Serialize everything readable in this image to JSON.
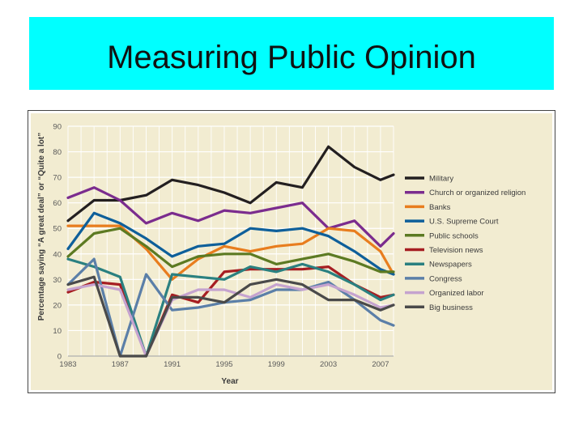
{
  "slide": {
    "title": "Measuring Public Opinion"
  },
  "colors": {
    "title_bg": "#00ffff",
    "panel_bg": "#f2ecd1",
    "grid": "#ffffff",
    "axis_text": "#5a5a5a"
  },
  "chart_data": {
    "type": "line",
    "title": "",
    "xlabel": "Year",
    "ylabel": "Percentage saying “A great deal” or “Quite a lot”",
    "xlim": [
      1983,
      2008
    ],
    "ylim": [
      0,
      90
    ],
    "x_ticks": [
      "1983",
      "1987",
      "1991",
      "1995",
      "1999",
      "2003",
      "2007"
    ],
    "y_ticks": [
      "0",
      "10",
      "20",
      "30",
      "40",
      "50",
      "60",
      "70",
      "80",
      "90"
    ],
    "grid": true,
    "legend_position": "right",
    "series": [
      {
        "name": "Military",
        "color": "#231f20",
        "points": [
          [
            1983,
            53
          ],
          [
            1985,
            61
          ],
          [
            1987,
            61
          ],
          [
            1989,
            63
          ],
          [
            1991,
            69
          ],
          [
            1993,
            67
          ],
          [
            1995,
            64
          ],
          [
            1997,
            60
          ],
          [
            1999,
            68
          ],
          [
            2001,
            66
          ],
          [
            2003,
            82
          ],
          [
            2005,
            74
          ],
          [
            2007,
            69
          ],
          [
            2008,
            71
          ]
        ]
      },
      {
        "name": "Church or organized religion",
        "color": "#7b2c8e",
        "points": [
          [
            1983,
            62
          ],
          [
            1985,
            66
          ],
          [
            1987,
            61
          ],
          [
            1989,
            52
          ],
          [
            1991,
            56
          ],
          [
            1993,
            53
          ],
          [
            1995,
            57
          ],
          [
            1997,
            56
          ],
          [
            1999,
            58
          ],
          [
            2001,
            60
          ],
          [
            2003,
            50
          ],
          [
            2005,
            53
          ],
          [
            2007,
            43
          ],
          [
            2008,
            48
          ]
        ]
      },
      {
        "name": "Banks",
        "color": "#e87d1e",
        "points": [
          [
            1983,
            51
          ],
          [
            1985,
            51
          ],
          [
            1987,
            51
          ],
          [
            1989,
            42
          ],
          [
            1991,
            30
          ],
          [
            1993,
            38
          ],
          [
            1995,
            43
          ],
          [
            1997,
            41
          ],
          [
            1999,
            43
          ],
          [
            2001,
            44
          ],
          [
            2003,
            50
          ],
          [
            2005,
            49
          ],
          [
            2007,
            41
          ],
          [
            2008,
            32
          ]
        ]
      },
      {
        "name": "U.S. Supreme Court",
        "color": "#0e5f9a",
        "points": [
          [
            1983,
            42
          ],
          [
            1985,
            56
          ],
          [
            1987,
            52
          ],
          [
            1989,
            46
          ],
          [
            1991,
            39
          ],
          [
            1993,
            43
          ],
          [
            1995,
            44
          ],
          [
            1997,
            50
          ],
          [
            1999,
            49
          ],
          [
            2001,
            50
          ],
          [
            2003,
            47
          ],
          [
            2005,
            41
          ],
          [
            2007,
            34
          ],
          [
            2008,
            32
          ]
        ]
      },
      {
        "name": "Public schools",
        "color": "#5c7a22",
        "points": [
          [
            1983,
            39
          ],
          [
            1985,
            48
          ],
          [
            1987,
            50
          ],
          [
            1989,
            43
          ],
          [
            1991,
            35
          ],
          [
            1993,
            39
          ],
          [
            1995,
            40
          ],
          [
            1997,
            40
          ],
          [
            1999,
            36
          ],
          [
            2001,
            38
          ],
          [
            2003,
            40
          ],
          [
            2005,
            37
          ],
          [
            2007,
            33
          ],
          [
            2008,
            33
          ]
        ]
      },
      {
        "name": "Television news",
        "color": "#a61e22",
        "points": [
          [
            1983,
            25
          ],
          [
            1985,
            29
          ],
          [
            1987,
            28
          ],
          [
            1989,
            0
          ],
          [
            1991,
            24
          ],
          [
            1993,
            21
          ],
          [
            1995,
            33
          ],
          [
            1997,
            34
          ],
          [
            1999,
            34
          ],
          [
            2001,
            34
          ],
          [
            2003,
            35
          ],
          [
            2005,
            28
          ],
          [
            2007,
            23
          ],
          [
            2008,
            24
          ]
        ]
      },
      {
        "name": "Newspapers",
        "color": "#2a8080",
        "points": [
          [
            1983,
            38
          ],
          [
            1985,
            35
          ],
          [
            1987,
            31
          ],
          [
            1989,
            0
          ],
          [
            1991,
            32
          ],
          [
            1993,
            31
          ],
          [
            1995,
            30
          ],
          [
            1997,
            35
          ],
          [
            1999,
            33
          ],
          [
            2001,
            36
          ],
          [
            2003,
            33
          ],
          [
            2005,
            28
          ],
          [
            2007,
            22
          ],
          [
            2008,
            24
          ]
        ]
      },
      {
        "name": "Congress",
        "color": "#5b7fa8",
        "points": [
          [
            1983,
            28
          ],
          [
            1985,
            38
          ],
          [
            1987,
            0
          ],
          [
            1989,
            32
          ],
          [
            1991,
            18
          ],
          [
            1993,
            19
          ],
          [
            1995,
            21
          ],
          [
            1997,
            22
          ],
          [
            1999,
            26
          ],
          [
            2001,
            26
          ],
          [
            2003,
            29
          ],
          [
            2005,
            22
          ],
          [
            2007,
            14
          ],
          [
            2008,
            12
          ]
        ]
      },
      {
        "name": "Organized labor",
        "color": "#c5a3cf",
        "points": [
          [
            1983,
            26
          ],
          [
            1985,
            28
          ],
          [
            1987,
            26
          ],
          [
            1989,
            0
          ],
          [
            1991,
            22
          ],
          [
            1993,
            26
          ],
          [
            1995,
            26
          ],
          [
            1997,
            23
          ],
          [
            1999,
            28
          ],
          [
            2001,
            26
          ],
          [
            2003,
            28
          ],
          [
            2005,
            24
          ],
          [
            2007,
            19
          ],
          [
            2008,
            20
          ]
        ]
      },
      {
        "name": "Big business",
        "color": "#4a4a4a",
        "points": [
          [
            1983,
            28
          ],
          [
            1985,
            31
          ],
          [
            1987,
            0
          ],
          [
            1989,
            0
          ],
          [
            1991,
            23
          ],
          [
            1993,
            23
          ],
          [
            1995,
            21
          ],
          [
            1997,
            28
          ],
          [
            1999,
            30
          ],
          [
            2001,
            28
          ],
          [
            2003,
            22
          ],
          [
            2005,
            22
          ],
          [
            2007,
            18
          ],
          [
            2008,
            20
          ]
        ]
      }
    ]
  }
}
